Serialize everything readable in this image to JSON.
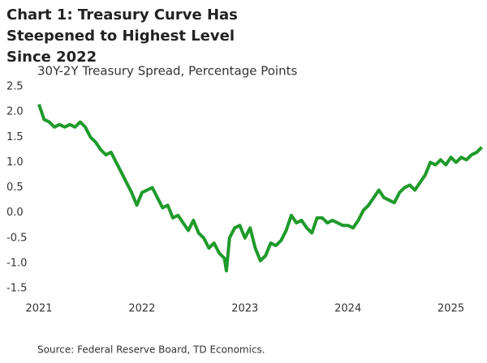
{
  "chart_data": {
    "type": "line",
    "title": "Chart 1: Treasury Curve Has Steepened to Highest Level Since 2022",
    "subtitle": "30Y-2Y Treasury Spread, Percentage Points",
    "source": "Source: Federal Reserve Board, TD Economics.",
    "color": "#1f9a2b",
    "x": [
      2021.0,
      2021.05,
      2021.1,
      2021.15,
      2021.2,
      2021.25,
      2021.3,
      2021.35,
      2021.4,
      2021.45,
      2021.5,
      2021.55,
      2021.6,
      2021.65,
      2021.7,
      2021.75,
      2021.8,
      2021.85,
      2021.9,
      2021.95,
      2022.0,
      2022.05,
      2022.1,
      2022.15,
      2022.2,
      2022.25,
      2022.3,
      2022.35,
      2022.4,
      2022.45,
      2022.5,
      2022.55,
      2022.6,
      2022.65,
      2022.7,
      2022.75,
      2022.8,
      2022.82,
      2022.85,
      2022.9,
      2022.95,
      2023.0,
      2023.05,
      2023.1,
      2023.15,
      2023.2,
      2023.25,
      2023.3,
      2023.35,
      2023.4,
      2023.45,
      2023.5,
      2023.55,
      2023.6,
      2023.65,
      2023.7,
      2023.75,
      2023.8,
      2023.85,
      2023.9,
      2023.95,
      2024.0,
      2024.05,
      2024.1,
      2024.15,
      2024.2,
      2024.25,
      2024.3,
      2024.35,
      2024.4,
      2024.45,
      2024.5,
      2024.55,
      2024.6,
      2024.65,
      2024.7,
      2024.75,
      2024.8,
      2024.85,
      2024.9,
      2024.95,
      2025.0,
      2025.05,
      2025.1,
      2025.15,
      2025.2,
      2025.25,
      2025.3
    ],
    "values": [
      2.15,
      1.85,
      1.8,
      1.7,
      1.75,
      1.7,
      1.75,
      1.7,
      1.8,
      1.7,
      1.5,
      1.4,
      1.25,
      1.15,
      1.2,
      1.0,
      0.8,
      0.6,
      0.4,
      0.15,
      0.4,
      0.45,
      0.5,
      0.3,
      0.1,
      0.15,
      -0.1,
      -0.05,
      -0.2,
      -0.35,
      -0.15,
      -0.4,
      -0.5,
      -0.7,
      -0.6,
      -0.8,
      -0.9,
      -1.15,
      -0.5,
      -0.3,
      -0.25,
      -0.5,
      -0.3,
      -0.7,
      -0.95,
      -0.85,
      -0.6,
      -0.65,
      -0.55,
      -0.35,
      -0.05,
      -0.2,
      -0.15,
      -0.3,
      -0.4,
      -0.1,
      -0.1,
      -0.2,
      -0.15,
      -0.2,
      -0.25,
      -0.25,
      -0.3,
      -0.15,
      0.05,
      0.15,
      0.3,
      0.45,
      0.3,
      0.25,
      0.2,
      0.4,
      0.5,
      0.55,
      0.45,
      0.6,
      0.75,
      1.0,
      0.95,
      1.05,
      0.95,
      1.1,
      1.0,
      1.1,
      1.05,
      1.15,
      1.2,
      1.3
    ],
    "xlim": [
      2021,
      2025.35
    ],
    "xticks": [
      2021,
      2022,
      2023,
      2024,
      2025
    ],
    "ylim": [
      -1.5,
      2.5
    ],
    "yticks": [
      2.5,
      {
        "value": 2,
        "label": "2.0"
      },
      1.5,
      {
        "value": 1,
        "label": "1.0"
      },
      0.5,
      {
        "value": 0,
        "label": "0.0"
      },
      -0.5,
      {
        "value": -1,
        "label": "-1.0"
      },
      -1.5
    ]
  }
}
